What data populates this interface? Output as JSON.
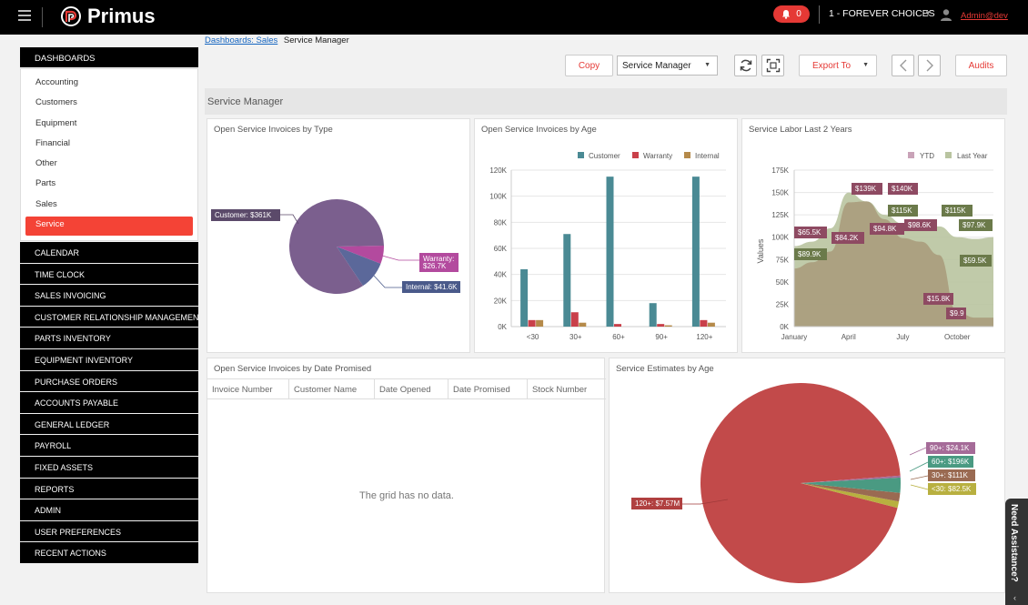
{
  "app": {
    "logo_text": "Primus",
    "notifications_count": "0",
    "company": "1 - FOREVER CHOICES",
    "user": "Admin@dev"
  },
  "sidebar": {
    "dashboards_header": "DASHBOARDS",
    "dashboards": [
      "Accounting",
      "Customers",
      "Equipment",
      "Financial",
      "Other",
      "Parts",
      "Sales",
      "Service"
    ],
    "active_dashboard": "Service",
    "sections": [
      "CALENDAR",
      "TIME CLOCK",
      "SALES INVOICING",
      "CUSTOMER RELATIONSHIP MANAGEMENT",
      "PARTS INVENTORY",
      "EQUIPMENT INVENTORY",
      "PURCHASE ORDERS",
      "ACCOUNTS PAYABLE",
      "GENERAL LEDGER",
      "PAYROLL",
      "FIXED ASSETS",
      "REPORTS",
      "ADMIN",
      "USER PREFERENCES",
      "RECENT ACTIONS"
    ]
  },
  "breadcrumb": {
    "link": "Dashboards: Sales",
    "current": "Service Manager"
  },
  "toolbar": {
    "copy_label": "Copy",
    "dashboard_select": "Service Manager",
    "export_label": "Export To",
    "audits_label": "Audits"
  },
  "panel_title": "Service Manager",
  "grid": {
    "title": "Open Service Invoices by Date Promised",
    "columns": [
      "Invoice Number",
      "Customer Name",
      "Date Opened",
      "Date Promised",
      "Stock Number"
    ],
    "empty_text": "The grid has no data."
  },
  "help_tab": "Need Assistance?",
  "colors": {
    "accent": "#f44336",
    "customer": "#4a8a94",
    "warranty": "#c9404a",
    "internal": "#b58a4a"
  },
  "chart_data": [
    {
      "type": "pie",
      "title": "Open Service Invoices by Type",
      "slices": [
        {
          "label": "Customer: $361K",
          "value": 361,
          "color": "#7b5f8e"
        },
        {
          "label": "Warranty: $26.7K",
          "value": 26.7,
          "color": "#b34a9e"
        },
        {
          "label": "Internal: $41.6K",
          "value": 41.6,
          "color": "#5b689a"
        }
      ]
    },
    {
      "type": "bar",
      "title": "Open Service Invoices by Age",
      "categories": [
        "<30",
        "30+",
        "60+",
        "90+",
        "120+"
      ],
      "series": [
        {
          "name": "Customer",
          "color": "#4a8a94",
          "values": [
            44000,
            71000,
            115000,
            18000,
            115000
          ]
        },
        {
          "name": "Warranty",
          "color": "#c9404a",
          "values": [
            5000,
            11000,
            2000,
            2000,
            5000
          ]
        },
        {
          "name": "Internal",
          "color": "#b58a4a",
          "values": [
            5000,
            3000,
            0,
            1000,
            3000
          ]
        }
      ],
      "ylim": [
        0,
        120000
      ],
      "yticks": [
        "0K",
        "20K",
        "40K",
        "60K",
        "80K",
        "100K",
        "120K"
      ],
      "legend": "top-right"
    },
    {
      "type": "area",
      "title": "Service Labor Last 2 Years",
      "ylabel": "Values",
      "xticks": [
        "January",
        "April",
        "July",
        "October"
      ],
      "yticks": [
        "0K",
        "25K",
        "50K",
        "75K",
        "100K",
        "125K",
        "150K",
        "175K"
      ],
      "ylim": [
        0,
        175000
      ],
      "series": [
        {
          "name": "YTD",
          "color": "#c9a3b8",
          "labels": [
            "$65.5K",
            "$84.2K",
            "$139K",
            "$94.8K",
            "$140K",
            "$98.6K",
            "$15.8K",
            "$9.9"
          ]
        },
        {
          "name": "Last Year",
          "color": "#b9c4a0",
          "labels": [
            "$89.9K",
            "$115K",
            "$115K",
            "$97.9K",
            "$59.5K"
          ]
        }
      ],
      "legend": "top-right"
    },
    {
      "type": "pie",
      "title": "Service Estimates by Age",
      "slices": [
        {
          "label": "120+: $7.57M",
          "value": 7570,
          "color": "#c24a4a"
        },
        {
          "label": "90+: $24.1K",
          "value": 24.1,
          "color": "#a56b98"
        },
        {
          "label": "60+: $196K",
          "value": 196,
          "color": "#4a9a82"
        },
        {
          "label": "30+: $111K",
          "value": 111,
          "color": "#9a6a52"
        },
        {
          "label": "<30: $82.5K",
          "value": 82.5,
          "color": "#b8b040"
        }
      ]
    }
  ]
}
